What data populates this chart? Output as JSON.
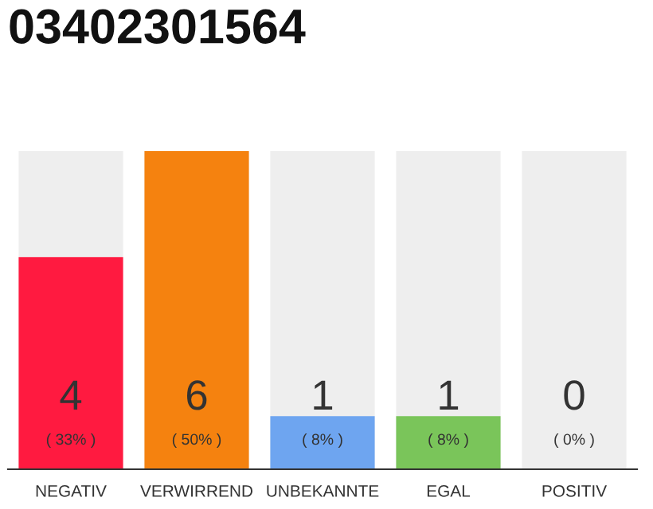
{
  "chart_data": {
    "type": "bar",
    "title": "03402301564",
    "categories": [
      "NEGATIV",
      "VERWIRREND",
      "UNBEKANNTE",
      "EGAL",
      "POSITIV"
    ],
    "values": [
      4,
      6,
      1,
      1,
      0
    ],
    "colors": [
      "#ff1a40",
      "#f5820f",
      "#6ea5f0",
      "#7ac55a",
      null
    ],
    "data_labels": true,
    "annotations": [
      "( 33% )",
      "( 50% )",
      "( 8% )",
      "( 8% )",
      "( 0% )"
    ],
    "ylim": [
      0,
      6
    ],
    "bands": [
      {
        "axis": "y",
        "from": 0,
        "to": 6,
        "color": "#eeeeee"
      }
    ],
    "tick_labels": "x",
    "grid": false,
    "legend": false
  }
}
